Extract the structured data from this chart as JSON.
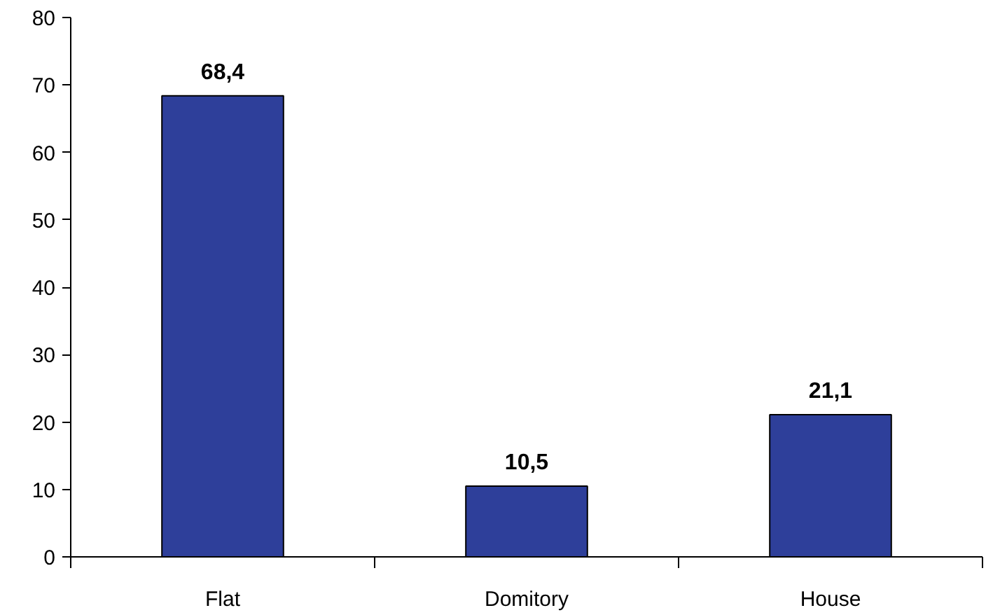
{
  "chart_data": {
    "type": "bar",
    "categories": [
      "Flat",
      "Domitory",
      "House"
    ],
    "values": [
      68.4,
      10.5,
      21.1
    ],
    "value_labels": [
      "68,4",
      "10,5",
      "21,1"
    ],
    "color": "#2e3f9a",
    "ylim": [
      0,
      80
    ],
    "yticks": [
      0,
      10,
      20,
      30,
      40,
      50,
      60,
      70,
      80
    ],
    "grid": false
  }
}
